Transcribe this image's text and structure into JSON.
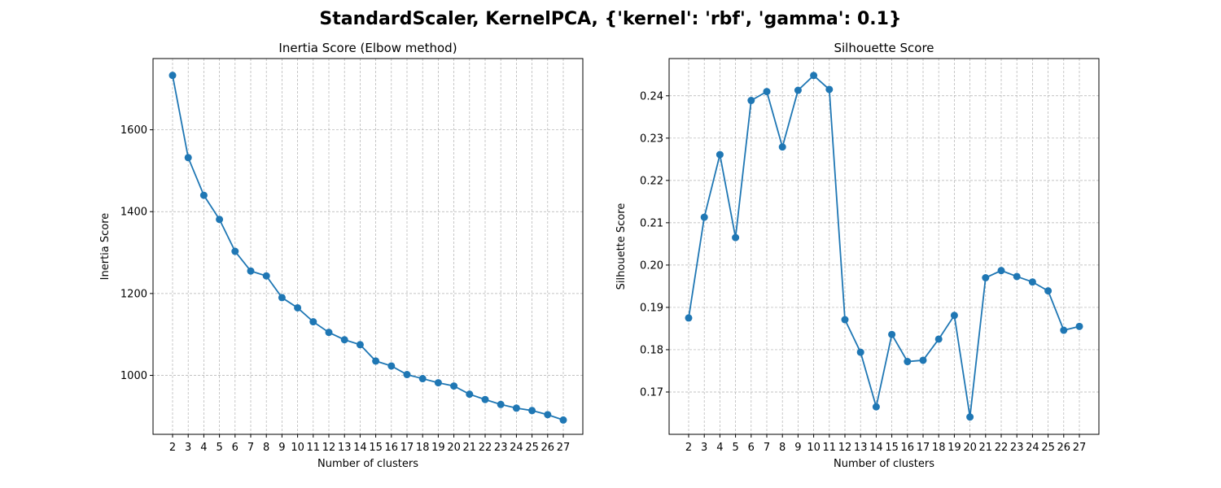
{
  "figure": {
    "suptitle": "StandardScaler, KernelPCA, {'kernel': 'rbf', 'gamma': 0.1}"
  },
  "chart_data": [
    {
      "type": "line",
      "title": "Inertia Score (Elbow method)",
      "xlabel": "Number of clusters",
      "ylabel": "Inertia Score",
      "x": [
        2,
        3,
        4,
        5,
        6,
        7,
        8,
        9,
        10,
        11,
        12,
        13,
        14,
        15,
        16,
        17,
        18,
        19,
        20,
        21,
        22,
        23,
        24,
        25,
        26,
        27
      ],
      "values": [
        1733,
        1532,
        1440,
        1381,
        1303,
        1255,
        1243,
        1190,
        1165,
        1131,
        1105,
        1087,
        1075,
        1035,
        1023,
        1002,
        992,
        982,
        974,
        954,
        941,
        929,
        920,
        914,
        904,
        891
      ],
      "yticks": [
        1000,
        1200,
        1400,
        1600
      ],
      "ytick_labels": [
        "1000",
        "1200",
        "1400",
        "1600"
      ],
      "ylim": [
        856,
        1774
      ],
      "grid": true,
      "marker": "circle",
      "color": "#1f77b4"
    },
    {
      "type": "line",
      "title": "Silhouette Score",
      "xlabel": "Number of clusters",
      "ylabel": "Silhouette Score",
      "x": [
        2,
        3,
        4,
        5,
        6,
        7,
        8,
        9,
        10,
        11,
        12,
        13,
        14,
        15,
        16,
        17,
        18,
        19,
        20,
        21,
        22,
        23,
        24,
        25,
        26,
        27
      ],
      "values": [
        0.1875,
        0.2113,
        0.2261,
        0.2065,
        0.2389,
        0.241,
        0.2279,
        0.2413,
        0.2448,
        0.2415,
        0.1871,
        0.1794,
        0.1665,
        0.1836,
        0.1772,
        0.1775,
        0.1825,
        0.1881,
        0.1641,
        0.197,
        0.1987,
        0.1973,
        0.196,
        0.1939,
        0.1846,
        0.1855
      ],
      "yticks": [
        0.17,
        0.18,
        0.19,
        0.2,
        0.21,
        0.22,
        0.23,
        0.24
      ],
      "ytick_labels": [
        "0.17",
        "0.18",
        "0.19",
        "0.20",
        "0.21",
        "0.22",
        "0.23",
        "0.24"
      ],
      "ylim": [
        0.16,
        0.2488
      ],
      "grid": true,
      "marker": "circle",
      "color": "#1f77b4"
    }
  ]
}
